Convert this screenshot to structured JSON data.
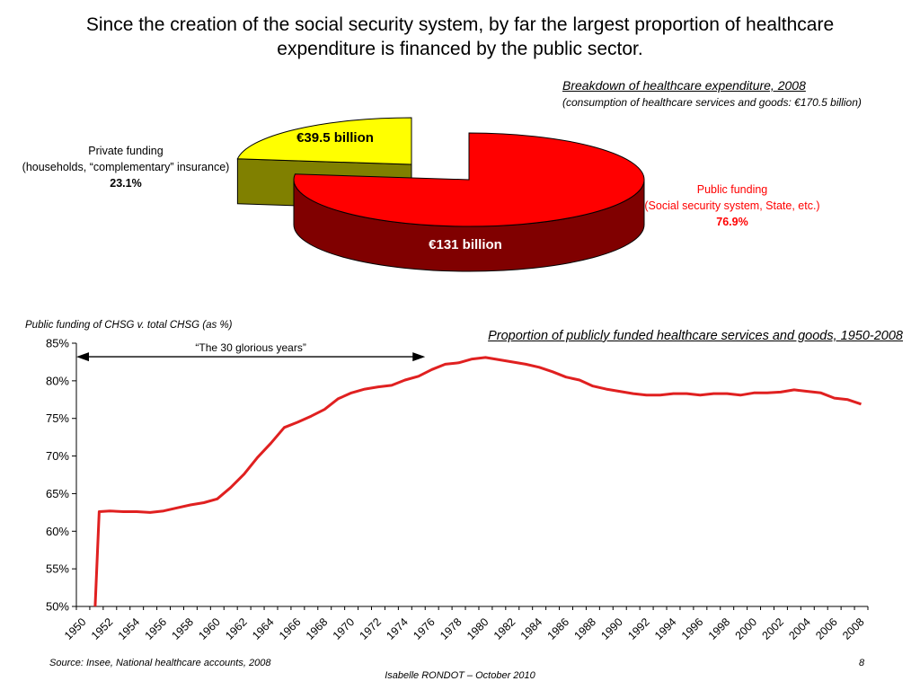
{
  "slide": {
    "title": "Since the creation of the social security system, by far the largest proportion of healthcare expenditure is financed by the public sector.",
    "source": "Source: Insee, National healthcare accounts, 2008",
    "page_number": "8",
    "author": "Isabelle RONDOT – October 2010"
  },
  "chart_data": [
    {
      "type": "pie",
      "title": "Breakdown of healthcare expenditure, 2008",
      "subtitle": "(consumption of healthcare services and goods: €170.5 billion)",
      "slices": [
        {
          "key": "private",
          "name_line1": "Private funding",
          "name_line2": "(households, “complementary” insurance)",
          "percent_label": "23.1%",
          "value": 23.1,
          "amount_label": "€39.5 billion",
          "color": "#ffff00",
          "side_color": "#808000"
        },
        {
          "key": "public",
          "name_line1": "Public funding",
          "name_line2": "(Social security system, State, etc.)",
          "percent_label": "76.9%",
          "value": 76.9,
          "amount_label": "€131 billion",
          "color": "#ff0000",
          "side_color": "#800000"
        }
      ]
    },
    {
      "type": "line",
      "title": "Proportion of publicly funded healthcare services and goods, 1950-2008",
      "ylabel": "Public funding of CHSG v. total CHSG (as %)",
      "xlabel": "",
      "ylim": [
        50,
        85
      ],
      "yticks": [
        50,
        55,
        60,
        65,
        70,
        75,
        80,
        85
      ],
      "ytick_suffix": "%",
      "xlim": [
        1950,
        2009
      ],
      "xticks": [
        "1950",
        "1952",
        "1954",
        "1956",
        "1958",
        "1960",
        "1962",
        "1964",
        "1966",
        "1968",
        "1970",
        "1972",
        "1974",
        "1976",
        "1978",
        "1980",
        "1982",
        "1984",
        "1986",
        "1988",
        "1990",
        "1992",
        "1994",
        "1996",
        "1998",
        "2000",
        "2002",
        "2004",
        "2006",
        "2008"
      ],
      "annotation": {
        "text": "“The 30 glorious years”",
        "from": 1950,
        "to": 1976,
        "y": 83.2
      },
      "series": [
        {
          "color": "#e02020",
          "points": [
            [
              1950.9,
              50.0
            ],
            [
              1951.2,
              62.6
            ],
            [
              1952,
              62.7
            ],
            [
              1953,
              62.6
            ],
            [
              1954,
              62.6
            ],
            [
              1955,
              62.5
            ],
            [
              1956,
              62.7
            ],
            [
              1957,
              63.1
            ],
            [
              1958,
              63.5
            ],
            [
              1959,
              63.8
            ],
            [
              1960,
              64.3
            ],
            [
              1961,
              65.8
            ],
            [
              1962,
              67.6
            ],
            [
              1963,
              69.8
            ],
            [
              1964,
              71.7
            ],
            [
              1965,
              73.8
            ],
            [
              1966,
              74.5
            ],
            [
              1967,
              75.3
            ],
            [
              1968,
              76.2
            ],
            [
              1969,
              77.6
            ],
            [
              1970,
              78.4
            ],
            [
              1971,
              78.9
            ],
            [
              1972,
              79.2
            ],
            [
              1973,
              79.4
            ],
            [
              1974,
              80.1
            ],
            [
              1975,
              80.6
            ],
            [
              1976,
              81.5
            ],
            [
              1977,
              82.2
            ],
            [
              1978,
              82.4
            ],
            [
              1979,
              82.9
            ],
            [
              1980,
              83.1
            ],
            [
              1981,
              82.8
            ],
            [
              1982,
              82.5
            ],
            [
              1983,
              82.2
            ],
            [
              1984,
              81.8
            ],
            [
              1985,
              81.2
            ],
            [
              1986,
              80.5
            ],
            [
              1987,
              80.1
            ],
            [
              1988,
              79.3
            ],
            [
              1989,
              78.9
            ],
            [
              1990,
              78.6
            ],
            [
              1991,
              78.3
            ],
            [
              1992,
              78.1
            ],
            [
              1993,
              78.1
            ],
            [
              1994,
              78.3
            ],
            [
              1995,
              78.3
            ],
            [
              1996,
              78.1
            ],
            [
              1997,
              78.3
            ],
            [
              1998,
              78.3
            ],
            [
              1999,
              78.1
            ],
            [
              2000,
              78.4
            ],
            [
              2001,
              78.4
            ],
            [
              2002,
              78.5
            ],
            [
              2003,
              78.8
            ],
            [
              2004,
              78.6
            ],
            [
              2005,
              78.4
            ],
            [
              2006,
              77.7
            ],
            [
              2007,
              77.5
            ],
            [
              2008,
              76.9
            ]
          ]
        }
      ]
    }
  ]
}
